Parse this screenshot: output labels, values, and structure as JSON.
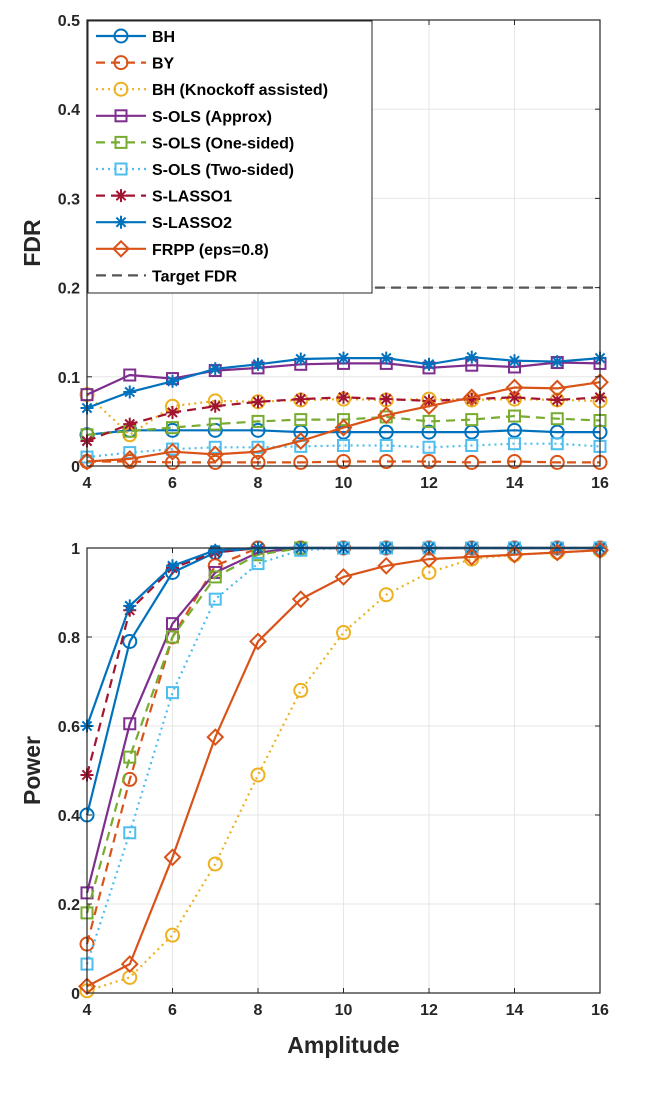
{
  "chart_data": [
    {
      "type": "line",
      "xlabel": "",
      "ylabel": "FDR",
      "xlim": [
        4,
        16
      ],
      "ylim": [
        0,
        0.5
      ],
      "xticks": [
        4,
        6,
        8,
        10,
        12,
        14,
        16
      ],
      "yticks": [
        0,
        0.1,
        0.2,
        0.3,
        0.4,
        0.5
      ],
      "ytick_labels": [
        "0",
        "0.1",
        "0.2",
        "0.3",
        "0.4",
        "0.5"
      ],
      "grid": true,
      "legend_position": "top-left",
      "x": [
        4,
        5,
        6,
        7,
        8,
        9,
        10,
        11,
        12,
        13,
        14,
        15,
        16
      ],
      "series": [
        {
          "name": "BH",
          "color": "#0072BD",
          "style": "solid",
          "marker": "circle",
          "values": [
            0.035,
            0.04,
            0.04,
            0.04,
            0.04,
            0.038,
            0.038,
            0.038,
            0.038,
            0.038,
            0.04,
            0.038,
            0.038
          ]
        },
        {
          "name": "BY",
          "color": "#D95319",
          "style": "dashed",
          "marker": "circle",
          "values": [
            0.005,
            0.005,
            0.004,
            0.004,
            0.004,
            0.004,
            0.005,
            0.005,
            0.005,
            0.004,
            0.005,
            0.004,
            0.004
          ]
        },
        {
          "name": "BH (Knockoff assisted)",
          "color": "#EDB120",
          "style": "dotted",
          "marker": "circle",
          "values": [
            0.08,
            0.035,
            0.067,
            0.073,
            0.072,
            0.074,
            0.075,
            0.074,
            0.075,
            0.074,
            0.075,
            0.074,
            0.073
          ]
        },
        {
          "name": "S-OLS (Approx)",
          "color": "#7E2F8E",
          "style": "solid",
          "marker": "square",
          "values": [
            0.08,
            0.102,
            0.098,
            0.107,
            0.11,
            0.114,
            0.115,
            0.115,
            0.11,
            0.113,
            0.111,
            0.116,
            0.115
          ]
        },
        {
          "name": "S-OLS (One-sided)",
          "color": "#77AC30",
          "style": "dashed",
          "marker": "square",
          "values": [
            0.035,
            0.039,
            0.043,
            0.047,
            0.05,
            0.052,
            0.052,
            0.055,
            0.05,
            0.052,
            0.056,
            0.053,
            0.051
          ]
        },
        {
          "name": "S-OLS (Two-sided)",
          "color": "#4DBEEE",
          "style": "dotted",
          "marker": "square",
          "values": [
            0.01,
            0.015,
            0.019,
            0.021,
            0.021,
            0.022,
            0.023,
            0.023,
            0.021,
            0.023,
            0.025,
            0.025,
            0.022
          ]
        },
        {
          "name": "S-LASSO1",
          "color": "#A2142F",
          "style": "dashed",
          "marker": "asterisk",
          "values": [
            0.028,
            0.047,
            0.06,
            0.067,
            0.072,
            0.075,
            0.077,
            0.075,
            0.073,
            0.075,
            0.077,
            0.074,
            0.077
          ]
        },
        {
          "name": "S-LASSO2",
          "color": "#0072BD",
          "style": "solid",
          "marker": "asterisk",
          "values": [
            0.065,
            0.083,
            0.095,
            0.109,
            0.114,
            0.12,
            0.121,
            0.121,
            0.114,
            0.122,
            0.118,
            0.117,
            0.121
          ]
        },
        {
          "name": "FRPP (eps=0.8)",
          "color": "#D95319",
          "style": "solid",
          "marker": "diamond",
          "values": [
            0.005,
            0.008,
            0.016,
            0.013,
            0.016,
            0.028,
            0.043,
            0.057,
            0.067,
            0.077,
            0.088,
            0.087,
            0.094
          ]
        },
        {
          "name": "Target FDR",
          "color": "#555555",
          "style": "dashed",
          "marker": "none",
          "values": [
            0.2,
            0.2,
            0.2,
            0.2,
            0.2,
            0.2,
            0.2,
            0.2,
            0.2,
            0.2,
            0.2,
            0.2,
            0.2
          ]
        }
      ]
    },
    {
      "type": "line",
      "xlabel": "Amplitude",
      "ylabel": "Power",
      "xlim": [
        4,
        16
      ],
      "ylim": [
        0,
        1
      ],
      "xticks": [
        4,
        6,
        8,
        10,
        12,
        14,
        16
      ],
      "yticks": [
        0,
        0.2,
        0.4,
        0.6,
        0.8,
        1
      ],
      "ytick_labels": [
        "0",
        "0.2",
        "0.4",
        "0.6",
        "0.8",
        "1"
      ],
      "grid": true,
      "x": [
        4,
        5,
        6,
        7,
        8,
        9,
        10,
        11,
        12,
        13,
        14,
        15,
        16
      ],
      "series": [
        {
          "name": "BH",
          "color": "#0072BD",
          "style": "solid",
          "marker": "circle",
          "values": [
            0.4,
            0.79,
            0.945,
            0.99,
            1,
            1,
            1,
            1,
            1,
            1,
            1,
            1,
            1
          ]
        },
        {
          "name": "BY",
          "color": "#D95319",
          "style": "dashed",
          "marker": "circle",
          "values": [
            0.11,
            0.48,
            0.8,
            0.96,
            1,
            1,
            1,
            1,
            1,
            1,
            1,
            1,
            1
          ]
        },
        {
          "name": "BH (Knockoff assisted)",
          "color": "#EDB120",
          "style": "dotted",
          "marker": "circle",
          "values": [
            0.005,
            0.035,
            0.13,
            0.29,
            0.49,
            0.68,
            0.81,
            0.895,
            0.945,
            0.975,
            0.985,
            0.99,
            0.995
          ]
        },
        {
          "name": "S-OLS (Approx)",
          "color": "#7E2F8E",
          "style": "solid",
          "marker": "square",
          "values": [
            0.225,
            0.605,
            0.83,
            0.945,
            0.99,
            1,
            1,
            1,
            1,
            1,
            1,
            1,
            1
          ]
        },
        {
          "name": "S-OLS (One-sided)",
          "color": "#77AC30",
          "style": "dashed",
          "marker": "square",
          "values": [
            0.18,
            0.53,
            0.8,
            0.935,
            0.985,
            1,
            1,
            1,
            1,
            1,
            1,
            1,
            1
          ]
        },
        {
          "name": "S-OLS (Two-sided)",
          "color": "#4DBEEE",
          "style": "dotted",
          "marker": "square",
          "values": [
            0.065,
            0.36,
            0.675,
            0.885,
            0.965,
            0.995,
            1,
            1,
            1,
            1,
            1,
            1,
            1
          ]
        },
        {
          "name": "S-LASSO1",
          "color": "#A2142F",
          "style": "dashed",
          "marker": "asterisk",
          "values": [
            0.49,
            0.86,
            0.955,
            0.99,
            1,
            1,
            1,
            1,
            1,
            1,
            1,
            1,
            1
          ]
        },
        {
          "name": "S-LASSO2",
          "color": "#0072BD",
          "style": "solid",
          "marker": "asterisk",
          "values": [
            0.6,
            0.87,
            0.96,
            0.995,
            1,
            1,
            1,
            1,
            1,
            1,
            1,
            1,
            1
          ]
        },
        {
          "name": "FRPP (eps=0.8)",
          "color": "#D95319",
          "style": "solid",
          "marker": "diamond",
          "values": [
            0.015,
            0.065,
            0.305,
            0.575,
            0.79,
            0.885,
            0.935,
            0.96,
            0.975,
            0.98,
            0.985,
            0.99,
            0.995
          ]
        }
      ]
    }
  ]
}
